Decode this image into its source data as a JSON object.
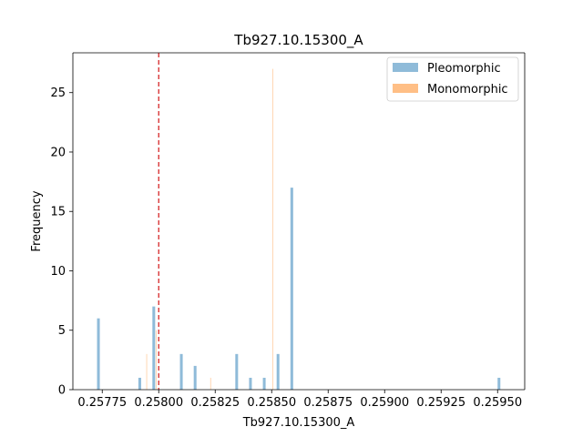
{
  "chart_data": {
    "type": "histogram",
    "title": "Tb927.10.15300_A",
    "xlabel": "Tb927.10.15300_A",
    "ylabel": "Frequency",
    "xlim": [
      0.25762,
      0.25962
    ],
    "ylim": [
      0,
      28.35
    ],
    "xticks": [
      0.25775,
      0.258,
      0.25825,
      0.2585,
      0.25875,
      0.259,
      0.25925,
      0.2595
    ],
    "xtick_labels": [
      "0.25775",
      "0.25800",
      "0.25825",
      "0.25850",
      "0.25875",
      "0.25900",
      "0.25925",
      "0.25950"
    ],
    "yticks": [
      0,
      5,
      10,
      15,
      20,
      25
    ],
    "ytick_labels": [
      "0",
      "5",
      "10",
      "15",
      "20",
      "25"
    ],
    "grid": false,
    "legend_position": "upper right",
    "reference_line": {
      "x": 0.258,
      "color": "#d62728",
      "style": "dashed"
    },
    "series": [
      {
        "name": "Pleomorphic",
        "color": "#1f77b4",
        "alpha": 0.5,
        "bin_width": 1.22e-05,
        "bins": [
          {
            "x0": 0.257727,
            "count": 6
          },
          {
            "x0": 0.25791,
            "count": 1
          },
          {
            "x0": 0.257972,
            "count": 7
          },
          {
            "x0": 0.258094,
            "count": 3
          },
          {
            "x0": 0.258155,
            "count": 2
          },
          {
            "x0": 0.258339,
            "count": 3
          },
          {
            "x0": 0.2584,
            "count": 1
          },
          {
            "x0": 0.258461,
            "count": 1
          },
          {
            "x0": 0.258522,
            "count": 3
          },
          {
            "x0": 0.258583,
            "count": 17
          },
          {
            "x0": 0.2595,
            "count": 1
          }
        ]
      },
      {
        "name": "Monomorphic",
        "color": "#ff7f0e",
        "alpha": 0.5,
        "bin_width": 2.5e-06,
        "bins": [
          {
            "x0": 0.2579455,
            "count": 3
          },
          {
            "x0": 0.2579883,
            "count": 5
          },
          {
            "x0": 0.2582284,
            "count": 1
          },
          {
            "x0": 0.258504,
            "count": 27
          }
        ]
      }
    ]
  }
}
